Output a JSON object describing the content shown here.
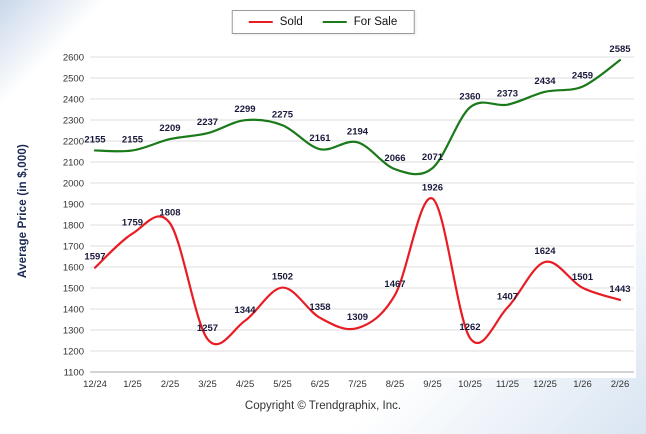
{
  "legend": {
    "items": [
      {
        "label": "Sold",
        "color": "#e81c24"
      },
      {
        "label": "For Sale",
        "color": "#1a7a1a"
      }
    ]
  },
  "footer": {
    "text": "Copyright © Trendgraphix, Inc."
  },
  "chart_data": {
    "type": "line",
    "title": "",
    "xlabel": "",
    "ylabel": "Average Price (in $,000)",
    "ylim": [
      1100,
      2600
    ],
    "ytick_step": 100,
    "grid": true,
    "legend_position": "top",
    "categories": [
      "12/24",
      "1/25",
      "2/25",
      "3/25",
      "4/25",
      "5/25",
      "6/25",
      "7/25",
      "8/25",
      "9/25",
      "10/25",
      "11/25",
      "12/25",
      "1/26",
      "2/26"
    ],
    "series": [
      {
        "name": "Sold",
        "color": "#e81c24",
        "values": [
          1597,
          1759,
          1808,
          1257,
          1344,
          1502,
          1358,
          1309,
          1467,
          1926,
          1262,
          1407,
          1624,
          1501,
          1443
        ]
      },
      {
        "name": "For Sale",
        "color": "#1a7a1a",
        "values": [
          2155,
          2155,
          2209,
          2237,
          2299,
          2275,
          2161,
          2194,
          2066,
          2071,
          2360,
          2373,
          2434,
          2459,
          2585
        ]
      }
    ],
    "value_label_color": "#1a1a3c",
    "tick_label_color": "#333333",
    "grid_color": "#dddddd",
    "axis_color": "#aaaaaa"
  }
}
